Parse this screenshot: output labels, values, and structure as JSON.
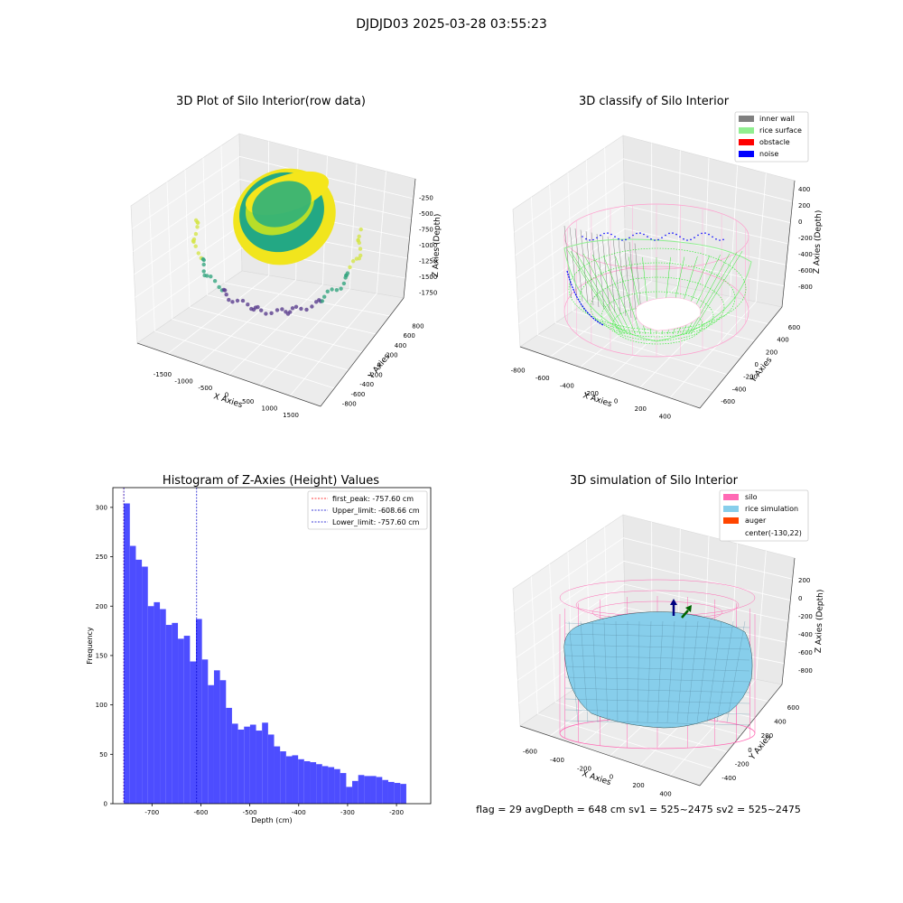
{
  "suptitle": "DJDJD03 2025-03-28 03:55:23",
  "footer": "flag = 29  avgDepth = 648 cm  sv1 = 525~2475  sv2 = 525~2475",
  "colors": {
    "raw_low": "#5b3f8f",
    "raw_mid": "#35a57f",
    "raw_high": "#f5e61b",
    "raw_top": "#d4e548",
    "inner_wall": "#808080",
    "rice_surface": "#90ee90",
    "obstacle": "#ff0000",
    "noise": "#0000ff",
    "silo": "#ff69b4",
    "rice_sim": "#87ceeb",
    "auger": "#ff4500",
    "hist_bar": "#4d4dff"
  },
  "plot1": {
    "title": "3D Plot of Silo Interior(row data)",
    "xlabel": "X Axies",
    "ylabel": "Y Axies",
    "zlabel": "Z Axies (Depth)",
    "xticks": [
      "-1500",
      "-1000",
      "-500",
      "0",
      "500",
      "1000",
      "1500"
    ],
    "yticks": [
      "-800",
      "-600",
      "-400",
      "-200",
      "0",
      "200",
      "400",
      "600",
      "800"
    ],
    "zticks": [
      "-250",
      "-500",
      "-750",
      "-1000",
      "-1250",
      "-1500",
      "-1750"
    ]
  },
  "plot2": {
    "title": "3D classify of Silo Interior",
    "xlabel": "X Axies",
    "ylabel": "Y Axies",
    "zlabel": "Z Axies (Depth)",
    "xticks": [
      "-800",
      "-600",
      "-400",
      "-200",
      "0",
      "200",
      "400"
    ],
    "yticks": [
      "-600",
      "-400",
      "-200",
      "0",
      "200",
      "400",
      "600"
    ],
    "zticks": [
      "400",
      "200",
      "0",
      "-200",
      "-400",
      "-600",
      "-800"
    ],
    "legend": [
      {
        "label": "inner wall",
        "color": "#808080"
      },
      {
        "label": "rice surface",
        "color": "#90ee90"
      },
      {
        "label": "obstacle",
        "color": "#ff0000"
      },
      {
        "label": "noise",
        "color": "#0000ff"
      }
    ]
  },
  "plot4": {
    "title": "3D simulation of Silo Interior",
    "xlabel": "X Axies",
    "ylabel": "Y Axies",
    "zlabel": "Z Axies (Depth)",
    "xticks": [
      "-600",
      "-400",
      "-200",
      "0",
      "200",
      "400"
    ],
    "yticks": [
      "-400",
      "-200",
      "0",
      "200",
      "400",
      "600"
    ],
    "zticks": [
      "200",
      "0",
      "-200",
      "-400",
      "-600",
      "-800"
    ],
    "legend": [
      {
        "label": "silo",
        "color": "#ff69b4"
      },
      {
        "label": "rice simulation",
        "color": "#87ceeb"
      },
      {
        "label": "auger",
        "color": "#ff4500"
      },
      {
        "label": "center(-130,22)",
        "color": ""
      }
    ]
  },
  "chart_data": {
    "type": "bar",
    "title": "Histogram of Z-Axies (Height) Values",
    "xlabel": "Depth (cm)",
    "ylabel": "Frequency",
    "xlim": [
      -780,
      -130
    ],
    "ylim": [
      0,
      320
    ],
    "xticks": [
      -700,
      -600,
      -500,
      -400,
      -300,
      -200
    ],
    "yticks": [
      0,
      50,
      100,
      150,
      200,
      250,
      300
    ],
    "bin_start": -757.6,
    "bin_width": 12.29,
    "values": [
      304,
      261,
      247,
      240,
      200,
      204,
      197,
      181,
      183,
      167,
      170,
      144,
      187,
      146,
      120,
      135,
      125,
      97,
      81,
      75,
      78,
      80,
      74,
      82,
      70,
      58,
      53,
      48,
      49,
      45,
      43,
      42,
      40,
      38,
      37,
      35,
      31,
      17,
      23,
      29,
      28,
      28,
      27,
      24,
      22,
      21,
      20
    ],
    "vlines": [
      {
        "label": "first_peak: -757.60 cm",
        "x": -757.6,
        "color": "#ff0000"
      },
      {
        "label": "Upper_limit: -608.66 cm",
        "x": -608.66,
        "color": "#0000cc"
      },
      {
        "label": "Lower_limit: -757.60 cm",
        "x": -757.6,
        "color": "#0000cc"
      }
    ]
  }
}
